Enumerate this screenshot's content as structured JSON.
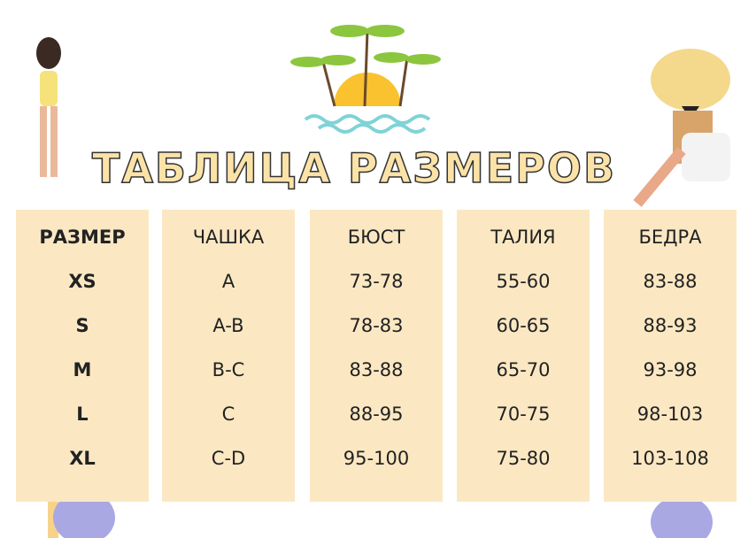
{
  "title": "ТАБЛИЦА РАЗМЕРОВ",
  "table": {
    "headers": [
      "РАЗМЕР",
      "ЧАШКА",
      "БЮСТ",
      "ТАЛИЯ",
      "БЕДРА"
    ],
    "rows": [
      [
        "XS",
        "A",
        "73-78",
        "55-60",
        "83-88"
      ],
      [
        "S",
        "A-B",
        "78-83",
        "60-65",
        "88-93"
      ],
      [
        "M",
        "B-C",
        "83-88",
        "65-70",
        "93-98"
      ],
      [
        "L",
        "C",
        "88-95",
        "70-75",
        "98-103"
      ],
      [
        "XL",
        "C-D",
        "95-100",
        "75-80",
        "103-108"
      ]
    ]
  },
  "colors": {
    "column_bg": "#fbe8c3",
    "title_fill": "#fbe3a8",
    "sun": "#f9c22e",
    "palm": "#8cc63f",
    "water": "#7fd3d6"
  }
}
